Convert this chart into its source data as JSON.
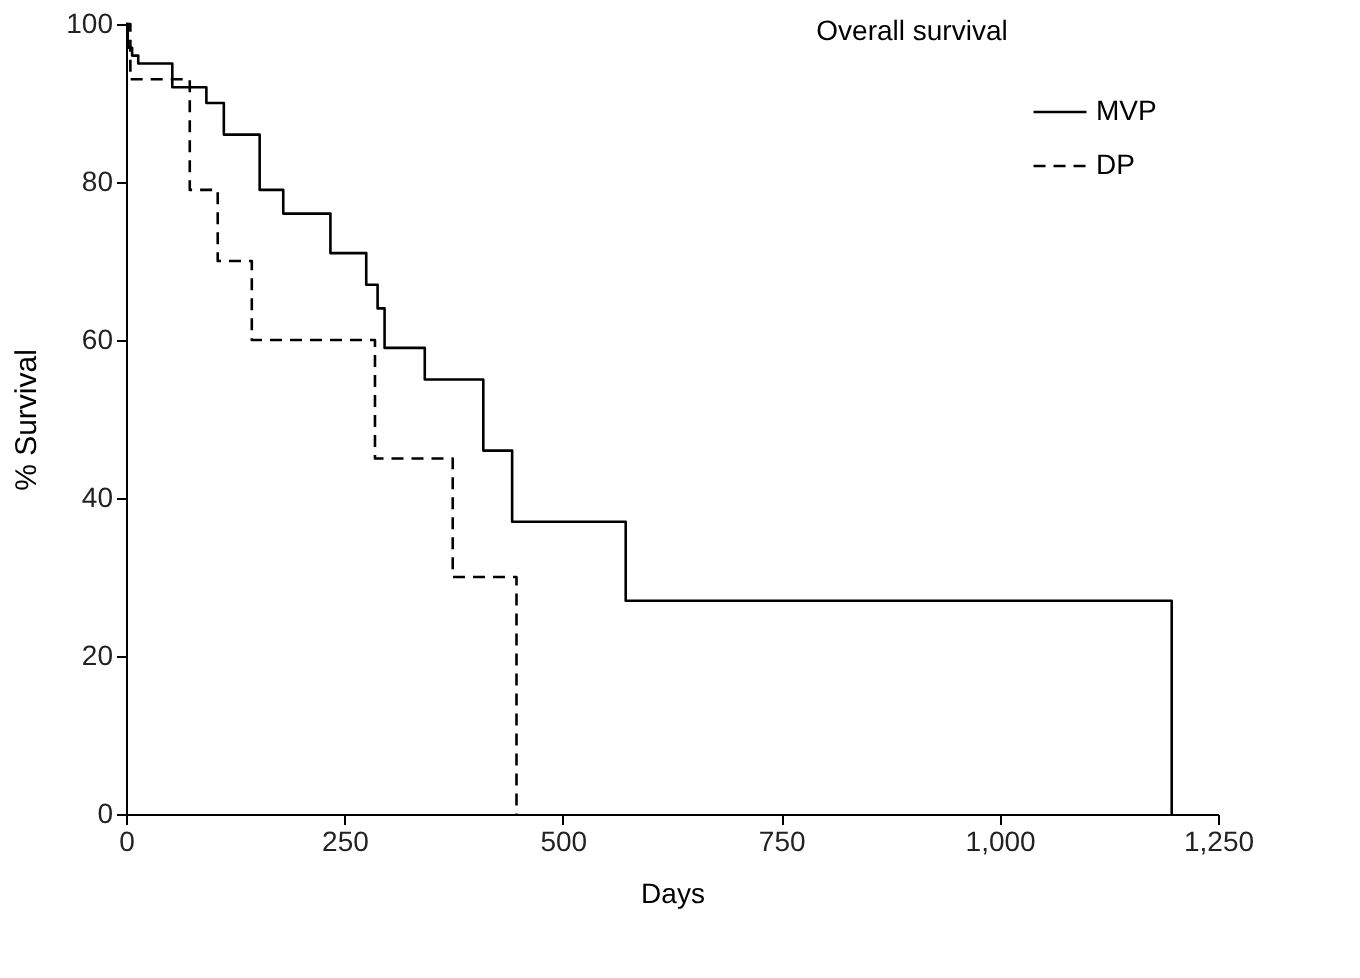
{
  "chart_data": {
    "type": "step",
    "title": "Overall survival",
    "xlabel": "Days",
    "ylabel": "% Survival",
    "xlim": [
      0,
      1250
    ],
    "xticks": [
      0,
      250,
      500,
      750,
      {
        "value": 1000,
        "label": "1,000"
      },
      {
        "value": 1250,
        "label": "1,250"
      }
    ],
    "ylim": [
      0,
      100
    ],
    "yticks": [
      0,
      20,
      40,
      60,
      80,
      100
    ],
    "grid": false,
    "legend": "top right",
    "series": [
      {
        "name": "MVP",
        "color": "#000000",
        "line_style": "solid",
        "x": [
          0,
          2,
          7,
          14,
          53,
          92,
          112,
          153,
          180,
          234,
          275,
          288,
          296,
          342,
          409,
          442,
          572,
          1197
        ],
        "values": [
          100,
          97,
          96,
          95,
          92,
          90,
          86,
          79,
          76,
          71,
          67,
          64,
          59,
          55,
          46,
          37,
          27,
          0
        ]
      },
      {
        "name": "DP",
        "color": "#000000",
        "line_style": "dashed",
        "x": [
          0,
          5,
          73,
          105,
          144,
          285,
          374,
          447
        ],
        "values": [
          100,
          93,
          79,
          70,
          60,
          45,
          30,
          0
        ]
      }
    ]
  }
}
